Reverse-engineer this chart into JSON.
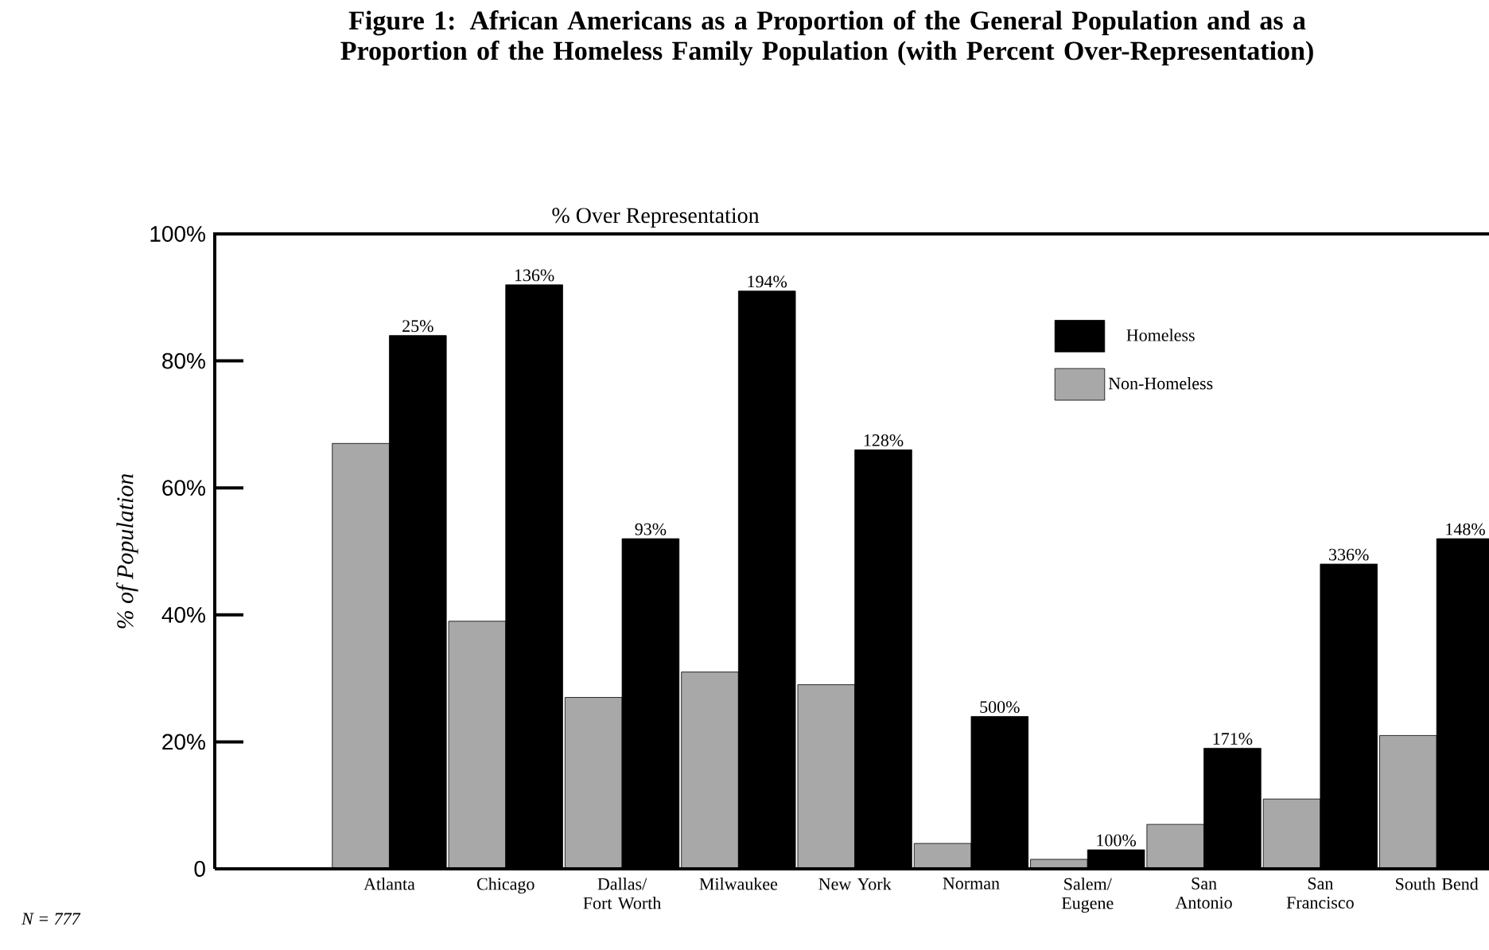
{
  "chart_data": {
    "type": "bar",
    "title": "Figure 1:  African Americans as a Proportion of the General Population and as a Proportion of the Homeless Family Population (with Percent Over-Representation)",
    "subtitle": "% Over Representation",
    "ylabel": "% of Population",
    "categories": [
      "Atlanta",
      "Chicago",
      "Dallas/ Fort Worth",
      "Milwaukee",
      "New York",
      "Norman",
      "Salem/ Eugene",
      "San Antonio",
      "San Francisco",
      "South Bend"
    ],
    "series": [
      {
        "name": "Homeless",
        "color": "#000000",
        "values": [
          84,
          92,
          52,
          91,
          66,
          24,
          3,
          19,
          48,
          52
        ]
      },
      {
        "name": "Non-Homeless",
        "color": "#a8a8a8",
        "values": [
          67,
          39,
          27,
          31,
          29,
          4,
          1.5,
          7,
          11,
          21
        ]
      }
    ],
    "ylim": [
      0,
      100
    ],
    "yticks": [
      {
        "value": 0,
        "label": "0"
      },
      {
        "value": 20,
        "label": "20%"
      },
      {
        "value": 40,
        "label": "40%"
      },
      {
        "value": 60,
        "label": "60%"
      },
      {
        "value": 80,
        "label": "80%"
      },
      {
        "value": 100,
        "label": "100%"
      }
    ],
    "legend": "top right",
    "grid": false,
    "annotations": [
      "N = 777",
      {
        "text": "25%",
        "x": "Atlanta",
        "y": 84
      },
      {
        "text": "136%",
        "x": "Chicago",
        "y": 92
      },
      {
        "text": "93%",
        "x": "Dallas/ Fort Worth",
        "y": 52
      },
      {
        "text": "194%",
        "x": "Milwaukee",
        "y": 91
      },
      {
        "text": "128%",
        "x": "New York",
        "y": 66
      },
      {
        "text": "500%",
        "x": "Norman",
        "y": 24
      },
      {
        "text": "100%",
        "x": "Salem/ Eugene",
        "y": 3
      },
      {
        "text": "171%",
        "x": "San Antonio",
        "y": 19
      },
      {
        "text": "336%",
        "x": "San Francisco",
        "y": 48
      },
      {
        "text": "148%",
        "x": "South Bend",
        "y": 52
      }
    ]
  }
}
